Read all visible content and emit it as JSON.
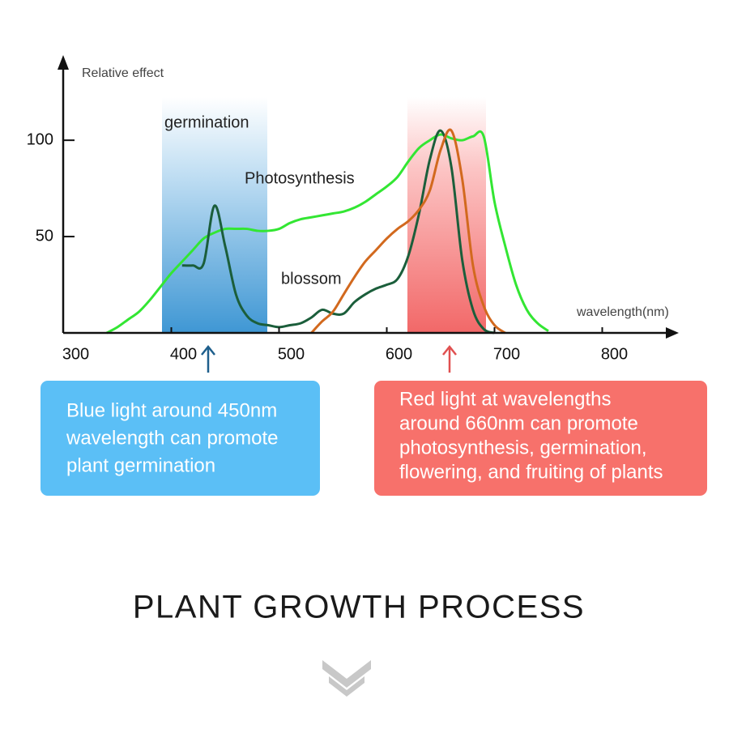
{
  "chart_data": {
    "type": "line",
    "ylabel": "Relative effect",
    "xlabel": "wavelength(nm)",
    "x": [
      340,
      350,
      360,
      370,
      380,
      390,
      400,
      410,
      420,
      430,
      440,
      450,
      460,
      470,
      480,
      490,
      500,
      510,
      520,
      530,
      540,
      550,
      560,
      570,
      580,
      590,
      600,
      610,
      620,
      630,
      640,
      650,
      660,
      670,
      680,
      690,
      700,
      710,
      720,
      730,
      740,
      750,
      760
    ],
    "series": [
      {
        "name": "Photosynthesis",
        "color": "#33e633",
        "values": [
          0,
          3,
          7,
          11,
          17,
          24,
          31,
          37,
          43,
          49,
          52,
          54,
          54,
          54,
          53,
          53,
          54,
          57,
          59,
          60,
          61,
          62,
          63,
          65,
          68,
          72,
          76,
          81,
          89,
          96,
          100,
          103,
          101,
          100,
          102,
          102,
          68,
          45,
          25,
          12,
          5,
          1,
          null
        ]
      },
      {
        "name": "germination",
        "color": "#1b5e3b",
        "values": [
          null,
          null,
          null,
          null,
          null,
          null,
          null,
          35,
          35,
          36,
          66,
          45,
          20,
          9,
          5,
          4,
          3,
          4,
          5,
          8,
          12,
          10,
          10,
          16,
          20,
          23,
          25,
          28,
          40,
          62,
          90,
          105,
          86,
          38,
          12,
          2,
          0,
          null,
          null,
          null,
          null,
          null,
          null
        ]
      },
      {
        "name": "blossom",
        "color": "#d2691e",
        "values": [
          null,
          null,
          null,
          null,
          null,
          null,
          null,
          null,
          null,
          null,
          null,
          null,
          null,
          null,
          null,
          null,
          null,
          null,
          null,
          0,
          6,
          11,
          20,
          29,
          37,
          43,
          49,
          54,
          58,
          64,
          74,
          95,
          105,
          80,
          35,
          14,
          4,
          0,
          null,
          null,
          null,
          null,
          null
        ]
      }
    ],
    "xlim": [
      300,
      850
    ],
    "ylim": [
      0,
      140
    ],
    "xticks": [
      300,
      400,
      500,
      600,
      700,
      800
    ],
    "yticks": [
      50,
      100
    ]
  },
  "callouts": [
    {
      "lines": [
        "Blue light around 450nm",
        "wavelength can promote",
        "plant germination"
      ]
    },
    {
      "lines": [
        "Red light at wavelengths",
        "around 660nm can promote",
        "photosynthesis, germination,",
        "flowering, and fruiting of plants"
      ]
    }
  ],
  "footer": {
    "title": "PLANT GROWTH PROCESS"
  }
}
